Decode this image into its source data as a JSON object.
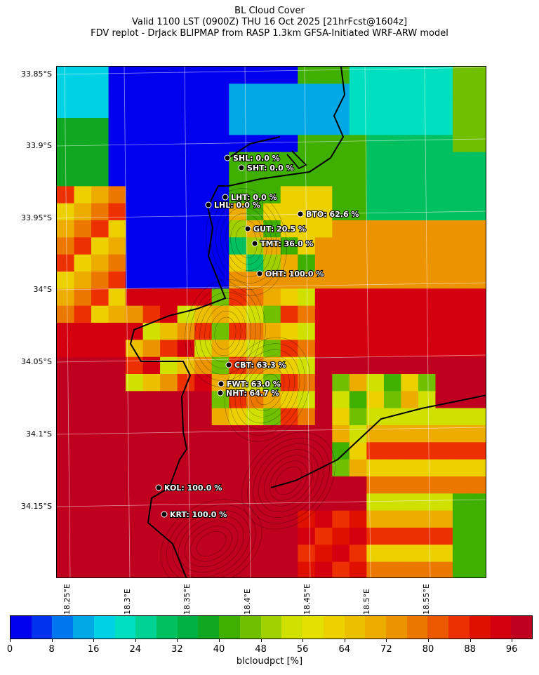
{
  "title": {
    "line1": "BL Cloud Cover",
    "line2": "Valid 1100 LST (0900Z) THU 16 Oct 2025 [21hrFcst@1604z]",
    "line3": "FDV replot - DrJack BLIPMAP from RASP 1.3km GFSA-Initiated WRF-ARW model"
  },
  "map": {
    "lat_labels": [
      "33.85°S",
      "33.9°S",
      "33.95°S",
      "34°S",
      "34.05°S",
      "34.1°S",
      "34.15°S"
    ],
    "lon_labels": [
      "18.25°E",
      "18.3°E",
      "18.35°E",
      "18.4°E",
      "18.45°E",
      "18.5°E",
      "18.55°E"
    ],
    "stations": [
      {
        "code": "SHL",
        "label": "SHL: 0.0 %",
        "value": 0.0
      },
      {
        "code": "SHT",
        "label": "SHT: 0.0 %",
        "value": 0.0
      },
      {
        "code": "LHT",
        "label": "LHT: 0.0 %",
        "value": 0.0
      },
      {
        "code": "LHL",
        "label": "LHL: 0.0 %",
        "value": 0.0
      },
      {
        "code": "BTO",
        "label": "BTO: 62.6 %",
        "value": 62.6
      },
      {
        "code": "GUT",
        "label": "GUT: 20.5 %",
        "value": 20.5
      },
      {
        "code": "TMT",
        "label": "TMT: 36.0 %",
        "value": 36.0
      },
      {
        "code": "OHT",
        "label": "OHT: 100.0 %",
        "value": 100.0
      },
      {
        "code": "CBT",
        "label": "CBT: 63.3 %",
        "value": 63.3
      },
      {
        "code": "FWT",
        "label": "FWT: 63.0 %",
        "value": 63.0
      },
      {
        "code": "NHT",
        "label": "NHT: 64.7 %",
        "value": 64.7
      },
      {
        "code": "KOL",
        "label": "KOL: 100.0 %",
        "value": 100.0
      },
      {
        "code": "KRT",
        "label": "KRT: 100.0 %",
        "value": 100.0
      }
    ]
  },
  "colorbar": {
    "label": "blcloudpct [%]",
    "ticks": [
      "0",
      "8",
      "16",
      "24",
      "32",
      "40",
      "48",
      "56",
      "64",
      "72",
      "80",
      "88",
      "96"
    ],
    "colors": [
      "#0000ee",
      "#0033ee",
      "#0077ee",
      "#00a9e6",
      "#00d2e6",
      "#00e0c0",
      "#00d293",
      "#00c060",
      "#00b040",
      "#10a820",
      "#40b000",
      "#70c000",
      "#a0d000",
      "#d0e000",
      "#e4e000",
      "#ecd000",
      "#ecc000",
      "#ecac00",
      "#ec9400",
      "#ec7800",
      "#ec5800",
      "#ec3000",
      "#e01000",
      "#d40010",
      "#c0001f"
    ]
  }
}
